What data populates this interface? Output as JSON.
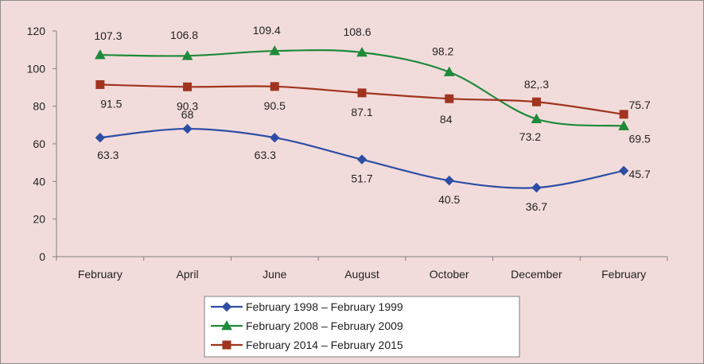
{
  "chart_data": {
    "type": "line",
    "title": "",
    "xlabel": "",
    "ylabel": "",
    "categories": [
      "February",
      "April",
      "June",
      "August",
      "October",
      "December",
      "February"
    ],
    "ylim": [
      0,
      120
    ],
    "yticks": [
      0,
      20,
      40,
      60,
      80,
      100,
      120
    ],
    "grid": false,
    "legend_position": "bottom",
    "series": [
      {
        "name": "February 1998 – February 1999",
        "color": "#2e4ea6",
        "marker": "diamond",
        "smooth": true,
        "values": [
          63.3,
          68,
          63.3,
          51.7,
          40.5,
          36.7,
          45.7
        ],
        "labels": [
          "63.3",
          "68",
          "63.3",
          "51.7",
          "40.5",
          "36.7",
          "45.7"
        ]
      },
      {
        "name": "February 2008 – February 2009",
        "color": "#1f8a3a",
        "marker": "triangle",
        "smooth": true,
        "values": [
          107.3,
          106.8,
          109.4,
          108.6,
          98.2,
          73.2,
          69.5
        ],
        "labels": [
          "107.3",
          "106.8",
          "109.4",
          "108.6",
          "98.2",
          "73.2",
          "69.5"
        ]
      },
      {
        "name": "February 2014 – February 2015",
        "color": "#a0341f",
        "marker": "square",
        "smooth": true,
        "values": [
          91.5,
          90.3,
          90.5,
          87.1,
          84,
          82.3,
          75.7
        ],
        "labels": [
          "91.5",
          "90.3",
          "90.5",
          "87.1",
          "84",
          "82,.3",
          "75.7"
        ]
      }
    ]
  }
}
